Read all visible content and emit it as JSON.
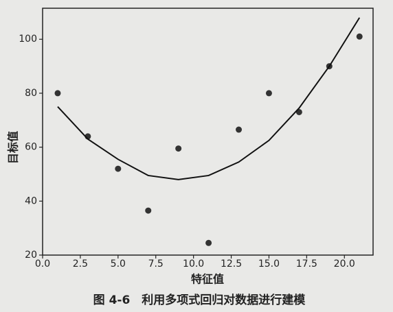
{
  "chart_data": {
    "type": "scatter",
    "title": "图 4-6　利用多项式回归对数据进行建模",
    "x_label": "特征值",
    "y_label": "目标值",
    "xlim": [
      0,
      21.9
    ],
    "ylim": [
      20,
      111.5
    ],
    "xticks": [
      {
        "value": 0,
        "label": "0.0"
      },
      2.5,
      {
        "value": 5,
        "label": "5.0"
      },
      7.5,
      {
        "value": 10,
        "label": "10.0"
      },
      12.5,
      {
        "value": 15,
        "label": "15.0"
      },
      17.5,
      {
        "value": 20,
        "label": "20.0"
      }
    ],
    "yticks": [
      20,
      40,
      60,
      80,
      100
    ],
    "series": [
      {
        "type": "scatter",
        "color": "#333333",
        "x": [
          1,
          3,
          5,
          7,
          9,
          11,
          13,
          15,
          17,
          19,
          21
        ],
        "values": [
          80,
          64,
          52,
          36.5,
          59.5,
          24.5,
          66.5,
          80,
          73,
          90,
          101
        ]
      },
      {
        "type": "line",
        "color": "#111111",
        "x": [
          1,
          3,
          5,
          7,
          9,
          11,
          13,
          15,
          17,
          19,
          21
        ],
        "values": [
          75,
          63,
          55.5,
          49.5,
          48,
          49.5,
          54.5,
          62.5,
          74.5,
          90,
          108
        ]
      }
    ]
  }
}
